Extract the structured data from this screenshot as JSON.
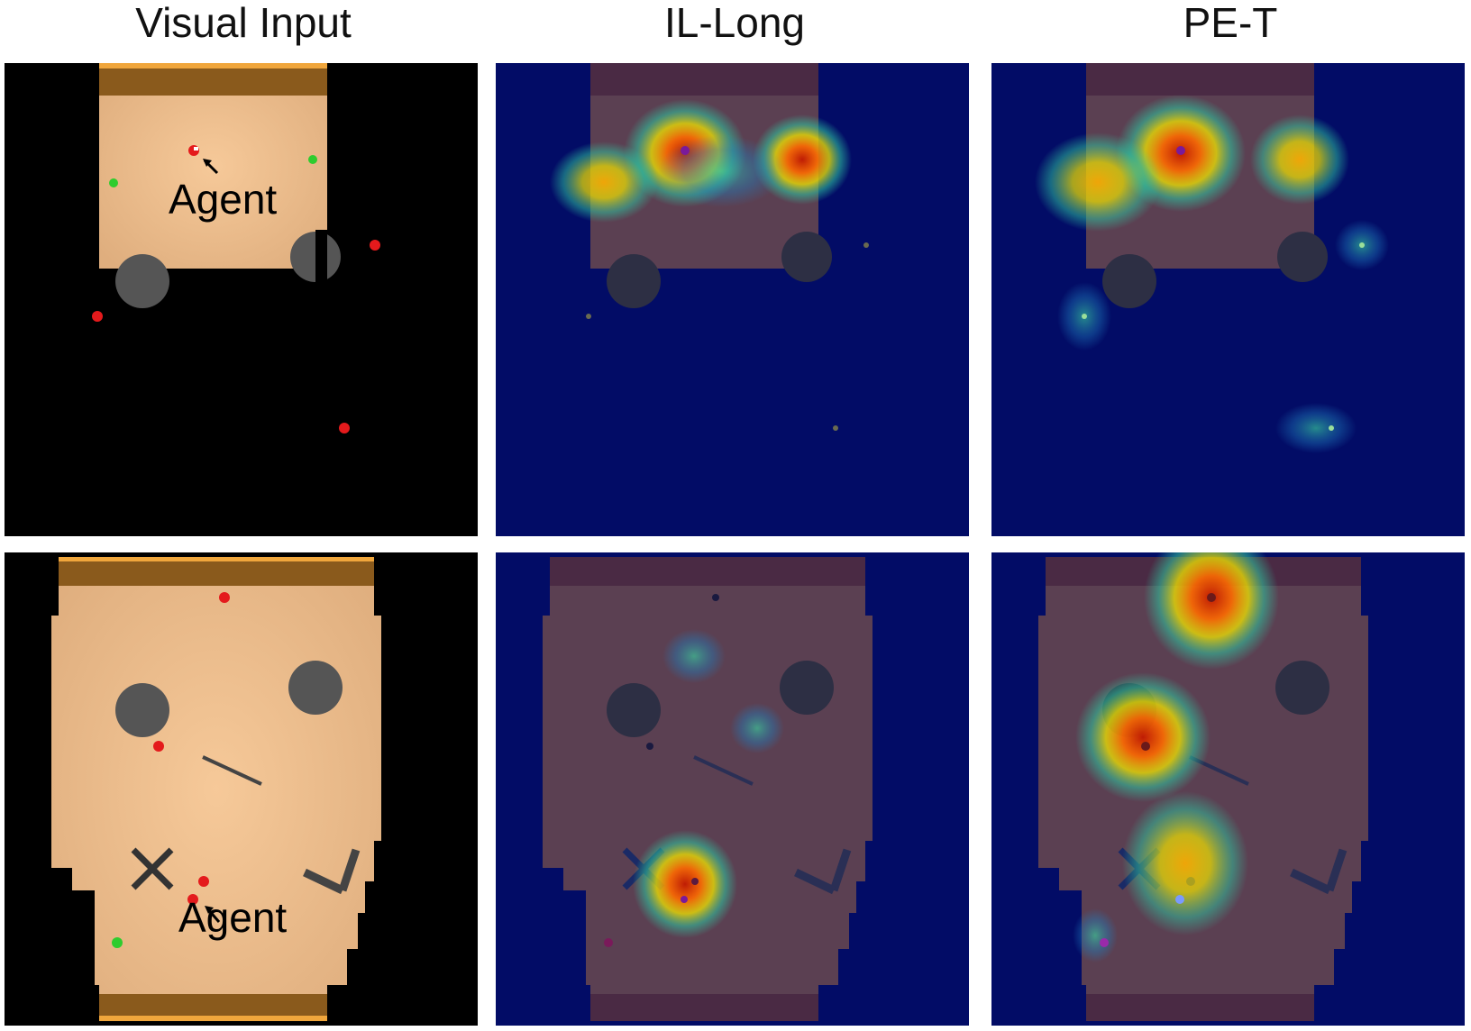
{
  "columns": [
    {
      "title": "Visual Input"
    },
    {
      "title": "IL-Long"
    },
    {
      "title": "PE-T"
    }
  ],
  "annotations": {
    "agent_label": "Agent"
  },
  "colors": {
    "floor": "#e8b887",
    "wall": "#8a5a1c",
    "wall_edge": "#f0a63c",
    "obstacle": "#555555",
    "heat_background": "#020c66",
    "heat_hot": "#d42a00",
    "heat_mid": "#f2e600",
    "heat_cool": "#2ec7a0",
    "agent_red": "#e41a1c",
    "goal_green": "#2ecc2e"
  }
}
